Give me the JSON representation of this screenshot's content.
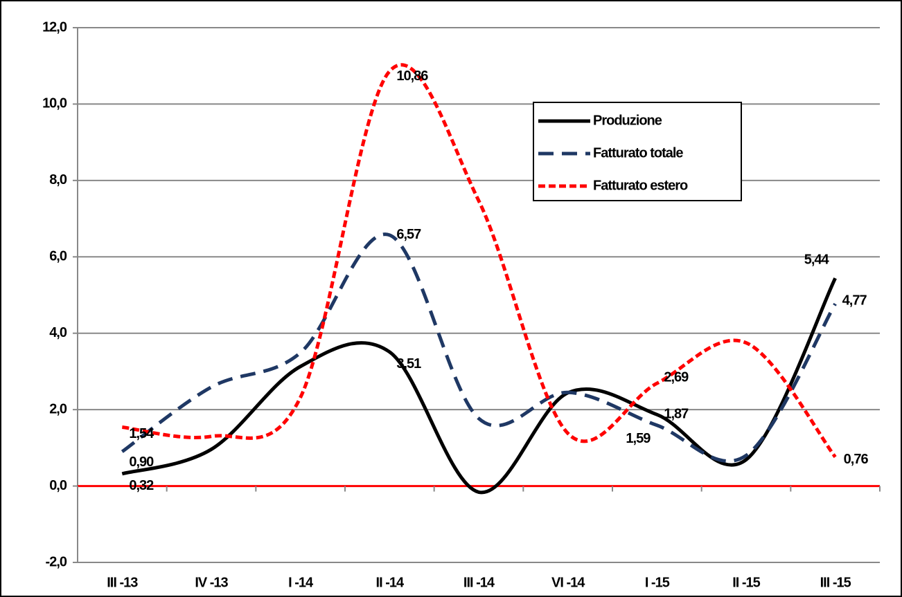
{
  "chart_data": {
    "type": "line",
    "categories": [
      "III -13",
      "IV -13",
      "I -14",
      "II -14",
      "III -14",
      "VI -14",
      "I -15",
      "II -15",
      "III -15"
    ],
    "series": [
      {
        "name": "Produzione",
        "color": "#000000",
        "style": "solid",
        "values": [
          0.32,
          0.96,
          3.13,
          3.51,
          -0.16,
          2.44,
          1.87,
          0.69,
          5.44
        ],
        "value_labels": [
          "0,32",
          null,
          null,
          "3,51",
          null,
          null,
          "1,87",
          null,
          "5,44"
        ]
      },
      {
        "name": "Fatturato totale",
        "color": "#1f3864",
        "style": "dashed",
        "values": [
          0.9,
          2.59,
          3.49,
          6.57,
          1.77,
          2.45,
          1.59,
          0.8,
          4.77
        ],
        "value_labels": [
          "0,90",
          null,
          null,
          "6,57",
          null,
          null,
          "1,59",
          null,
          "4,77"
        ]
      },
      {
        "name": "Fatturato estero",
        "color": "#ff0000",
        "style": "dotted",
        "values": [
          1.54,
          1.3,
          2.32,
          10.86,
          7.47,
          1.38,
          2.69,
          3.75,
          0.76
        ],
        "value_labels": [
          "1,54",
          null,
          null,
          "10,86",
          null,
          null,
          "2,69",
          null,
          "0,76"
        ]
      }
    ],
    "ylim": [
      -2,
      12
    ],
    "yticks": [
      {
        "value": -2,
        "label": "-2,0"
      },
      {
        "value": 0,
        "label": "0,0"
      },
      {
        "value": 2,
        "label": "2,0"
      },
      {
        "value": 4,
        "label": "4,0"
      },
      {
        "value": 6,
        "label": "6,0"
      },
      {
        "value": 8,
        "label": "8,0"
      },
      {
        "value": 10,
        "label": "10,0"
      },
      {
        "value": 12,
        "label": "12,0"
      }
    ],
    "grid": true,
    "legend": "upper right"
  }
}
